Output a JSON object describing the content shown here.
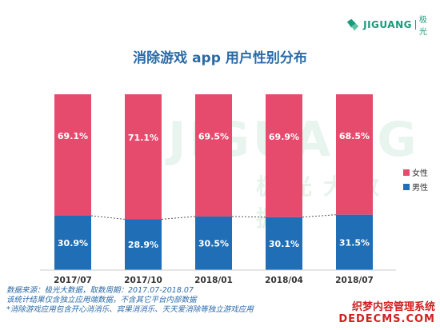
{
  "brand": {
    "name": "JIGUANG",
    "sub": "极光"
  },
  "watermark": {
    "main": "JIGUANG",
    "sub": "极光大数据"
  },
  "notes": [
    "数据来源：极光大数据，取数周期：2017.07-2018.07",
    "该统计结果仅含独立应用端数据，不含其它平台内部数据",
    "*消除游戏应用包含开心消消乐、宾果消消乐、天天爱消除等独立游戏应用"
  ],
  "site_watermark": {
    "line1": "织梦内容管理系统",
    "line2": "DEDECMS.COM"
  },
  "colors": {
    "female": "#e64a6d",
    "male": "#1f6eb6",
    "title": "#2a6aa8"
  },
  "chart_data": {
    "type": "bar",
    "stacked": true,
    "title": "消除游戏 app 用户性别分布",
    "categories": [
      "2017/07",
      "2017/10",
      "2018/01",
      "2018/04",
      "2018/07"
    ],
    "series": [
      {
        "name": "男性",
        "values": [
          30.9,
          28.9,
          30.5,
          30.1,
          31.5
        ],
        "labels": [
          "30.9%",
          "28.9%",
          "30.5%",
          "30.1%",
          "31.5%"
        ]
      },
      {
        "name": "女性",
        "values": [
          69.1,
          71.1,
          69.5,
          69.9,
          68.5
        ],
        "labels": [
          "69.1%",
          "71.1%",
          "69.5%",
          "69.9%",
          "68.5%"
        ]
      }
    ],
    "ylim": [
      0,
      100
    ],
    "legend": "right",
    "grid": false
  }
}
